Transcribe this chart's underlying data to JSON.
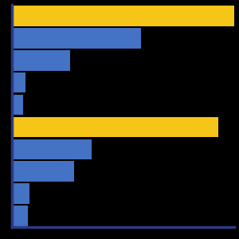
{
  "bars": [
    {
      "value": 100,
      "color": "#F5C518"
    },
    {
      "value": 58,
      "color": "#4472C4"
    },
    {
      "value": 26,
      "color": "#4472C4"
    },
    {
      "value": 6,
      "color": "#4472C4"
    },
    {
      "value": 5,
      "color": "#4472C4"
    },
    {
      "value": 93,
      "color": "#F5C518"
    },
    {
      "value": 36,
      "color": "#4472C4"
    },
    {
      "value": 28,
      "color": "#4472C4"
    },
    {
      "value": 8,
      "color": "#4472C4"
    },
    {
      "value": 7,
      "color": "#4472C4"
    }
  ],
  "background_color": "#000000",
  "axis_color": "#2E3A87",
  "bar_height": 0.92,
  "xlim": [
    0,
    100
  ],
  "gap_indices": [
    5
  ]
}
